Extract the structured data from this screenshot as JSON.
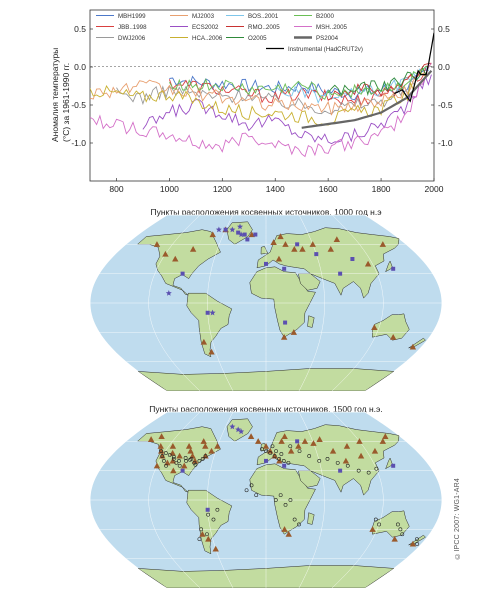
{
  "figure": {
    "copyright": "©IPCC 2007: WG1-AR4"
  },
  "chart_data": [
    {
      "type": "line",
      "title": "",
      "xlabel": "",
      "ylabel": "Аномалия температуры (°C) за 1961-1990 гг.",
      "xlim": [
        700,
        2000
      ],
      "ylim": [
        -1.5,
        0.75
      ],
      "x_ticks": [
        800,
        1000,
        1200,
        1400,
        1600,
        1800,
        2000
      ],
      "y_ticks_left": [
        "0.5",
        "0.0",
        "-0.5",
        "-1.0"
      ],
      "y_ticks_right": [
        "0.5",
        "0.0",
        "-0.5",
        "-1.0"
      ],
      "grid": false,
      "zero_line": "dashed",
      "legend_position": "top",
      "series": [
        {
          "name": "MBH1999",
          "color": "#4c78c9",
          "x": [
            1000,
            1100,
            1200,
            1300,
            1400,
            1500,
            1600,
            1700,
            1800,
            1850,
            1900,
            1950,
            1980
          ],
          "y": [
            -0.15,
            -0.2,
            -0.22,
            -0.25,
            -0.28,
            -0.25,
            -0.32,
            -0.35,
            -0.3,
            -0.3,
            -0.25,
            -0.15,
            -0.05
          ]
        },
        {
          "name": "JBB..1998",
          "color": "#d94040",
          "x": [
            1000,
            1100,
            1200,
            1300,
            1400,
            1500,
            1600,
            1700,
            1800,
            1850,
            1900,
            1950,
            1980
          ],
          "y": [
            -0.2,
            -0.25,
            -0.3,
            -0.35,
            -0.4,
            -0.35,
            -0.4,
            -0.45,
            -0.35,
            -0.3,
            -0.2,
            -0.1,
            0.0
          ]
        },
        {
          "name": "DWJ2006",
          "color": "#9a9a9a",
          "x": [
            800,
            900,
            1000,
            1100,
            1200,
            1300,
            1400,
            1500,
            1600,
            1700,
            1800,
            1900,
            1950
          ],
          "y": [
            -0.35,
            -0.4,
            -0.3,
            -0.35,
            -0.4,
            -0.35,
            -0.45,
            -0.5,
            -0.55,
            -0.5,
            -0.45,
            -0.3,
            -0.1
          ]
        },
        {
          "name": "MJ2003",
          "color": "#e8a070",
          "x": [
            700,
            800,
            900,
            1000,
            1100,
            1200,
            1300,
            1400,
            1500,
            1600,
            1700,
            1800,
            1900,
            1980
          ],
          "y": [
            -0.35,
            -0.3,
            -0.25,
            -0.3,
            -0.35,
            -0.4,
            -0.45,
            -0.5,
            -0.5,
            -0.55,
            -0.5,
            -0.45,
            -0.3,
            0.0
          ]
        },
        {
          "name": "ECS2002",
          "color": "#9a4fc4",
          "x": [
            900,
            1000,
            1100,
            1200,
            1300,
            1400,
            1500,
            1600,
            1700,
            1800,
            1900,
            1990
          ],
          "y": [
            -0.8,
            -0.6,
            -0.5,
            -0.6,
            -0.75,
            -0.7,
            -0.9,
            -0.95,
            -0.9,
            -0.75,
            -0.5,
            -0.1
          ]
        },
        {
          "name": "HCA..2006",
          "color": "#c8b030",
          "x": [
            700,
            800,
            900,
            1000,
            1100,
            1200,
            1300,
            1400,
            1500,
            1600,
            1700,
            1800,
            1900,
            1990
          ],
          "y": [
            -0.3,
            -0.35,
            -0.4,
            -0.35,
            -0.45,
            -0.55,
            -0.6,
            -0.6,
            -0.65,
            -0.7,
            -0.6,
            -0.55,
            -0.35,
            0.05
          ]
        },
        {
          "name": "BOS..2001",
          "color": "#7ec6ea",
          "x": [
            1400,
            1500,
            1600,
            1700,
            1800,
            1900,
            1980
          ],
          "y": [
            -0.3,
            -0.35,
            -0.4,
            -0.35,
            -0.3,
            -0.2,
            -0.05
          ]
        },
        {
          "name": "RMO..2005",
          "color": "#c83232",
          "x": [
            1600,
            1700,
            1800,
            1850,
            1900,
            1950,
            1990
          ],
          "y": [
            -0.35,
            -0.3,
            -0.3,
            -0.25,
            -0.2,
            -0.05,
            0.05
          ]
        },
        {
          "name": "O2005",
          "color": "#2f8a3a",
          "x": [
            1600,
            1700,
            1800,
            1900,
            1980
          ],
          "y": [
            -0.3,
            -0.3,
            -0.25,
            -0.15,
            0.0
          ]
        },
        {
          "name": "B2000",
          "color": "#6abf55",
          "x": [
            1000,
            1100,
            1200,
            1300,
            1400,
            1500,
            1600,
            1700,
            1800,
            1900,
            1980
          ],
          "y": [
            -0.2,
            -0.25,
            -0.25,
            -0.3,
            -0.3,
            -0.25,
            -0.35,
            -0.3,
            -0.3,
            -0.2,
            0.0
          ]
        },
        {
          "name": "MSH..2005",
          "color": "#d470c8",
          "x": [
            700,
            800,
            900,
            1000,
            1100,
            1200,
            1300,
            1400,
            1500,
            1600,
            1700,
            1800,
            1900,
            1990
          ],
          "y": [
            -0.7,
            -0.75,
            -0.85,
            -0.9,
            -1.0,
            -1.05,
            -0.9,
            -1.0,
            -1.1,
            -1.05,
            -1.0,
            -0.9,
            -0.6,
            0.05
          ]
        },
        {
          "name": "PS2004",
          "color": "#666666",
          "x": [
            1500,
            1600,
            1700,
            1800,
            1900,
            1990
          ],
          "y": [
            -0.8,
            -0.75,
            -0.7,
            -0.6,
            -0.4,
            -0.05
          ]
        },
        {
          "name": "Instrumental (HadCRUT2v)",
          "color": "#000000",
          "x": [
            1850,
            1880,
            1910,
            1940,
            1950,
            1970,
            1980,
            1990,
            2000
          ],
          "y": [
            -0.35,
            -0.3,
            -0.45,
            -0.05,
            -0.1,
            -0.1,
            0.05,
            0.25,
            0.45
          ]
        }
      ]
    },
    {
      "type": "map",
      "title": "Пункты расположения косвенных источников, 1000 год н.э",
      "projection": "robinson",
      "ocean_color": "#bfdcee",
      "land_color": "#c2dca0",
      "markers": [
        {
          "kind": "triangle",
          "color": "#9a5a2c",
          "lon": [
            -140,
            -120,
            -105,
            -90,
            -75,
            -60,
            -20,
            10,
            15,
            20,
            25,
            35,
            45,
            60,
            80,
            95,
            115,
            150,
            170,
            -70,
            -65,
            20,
            30,
            115,
            140
          ],
          "lat": [
            60,
            50,
            45,
            55,
            70,
            75,
            70,
            62,
            45,
            68,
            60,
            55,
            55,
            60,
            55,
            65,
            40,
            60,
            -45,
            -40,
            -50,
            -35,
            -30,
            -25,
            -35
          ]
        },
        {
          "kind": "square",
          "color": "#5b50b0",
          "lon": [
            -90,
            -60,
            -40,
            -30,
            -25,
            -15,
            0,
            20,
            40,
            60,
            80,
            100,
            140,
            -60,
            20
          ],
          "lat": [
            30,
            75,
            72,
            70,
            65,
            70,
            40,
            35,
            60,
            50,
            30,
            45,
            35,
            -10,
            -20
          ]
        },
        {
          "kind": "star",
          "color": "#5b50b0",
          "lon": [
            -70,
            -50,
            -40,
            -35,
            -100,
            -55
          ],
          "lat": [
            75,
            75,
            78,
            70,
            10,
            -10
          ]
        }
      ]
    },
    {
      "type": "map",
      "title": "Пункты расположения косвенных источников, 1500 год н.э.",
      "projection": "robinson",
      "ocean_color": "#bfdcee",
      "land_color": "#c2dca0",
      "markers": [
        {
          "kind": "triangle",
          "color": "#9a5a2c",
          "lon": [
            -150,
            -140,
            -130,
            -125,
            -120,
            -115,
            -110,
            -105,
            -100,
            -95,
            -90,
            -85,
            -80,
            -75,
            -70,
            -65,
            -60,
            -120,
            -110,
            -100,
            -90,
            -80,
            -20,
            -10,
            0,
            5,
            10,
            15,
            20,
            25,
            30,
            40,
            50,
            60,
            70,
            80,
            90,
            100,
            110,
            120,
            130,
            150,
            160,
            -70,
            -65,
            -60,
            20,
            25,
            115,
            145,
            170
          ],
          "lat": [
            62,
            65,
            55,
            50,
            45,
            55,
            48,
            40,
            45,
            55,
            50,
            45,
            60,
            55,
            45,
            50,
            55,
            35,
            38,
            30,
            35,
            40,
            65,
            60,
            55,
            50,
            45,
            40,
            60,
            65,
            50,
            55,
            60,
            58,
            62,
            50,
            40,
            55,
            45,
            60,
            50,
            60,
            65,
            -35,
            -40,
            -50,
            -30,
            -35,
            -30,
            -40,
            -45
          ]
        },
        {
          "kind": "circle",
          "color": "#222222",
          "lon": [
            -125,
            -120,
            -115,
            -110,
            -105,
            -100,
            -95,
            -90,
            -85,
            -80,
            -75,
            -70,
            -118,
            -112,
            -106,
            -98,
            -92,
            -86,
            -78,
            -72,
            0,
            5,
            10,
            15,
            20,
            25,
            -5,
            8,
            12,
            18,
            30,
            40,
            50,
            60,
            70,
            80,
            90,
            100,
            110,
            120,
            30,
            35,
            20,
            25,
            -60,
            -55,
            -50,
            -70,
            -65,
            -75,
            140,
            145,
            150,
            115,
            120,
            170,
            175,
            -20,
            -15,
            -10,
            10,
            15
          ],
          "lat": [
            50,
            45,
            40,
            35,
            42,
            38,
            35,
            40,
            42,
            38,
            40,
            45,
            48,
            46,
            44,
            40,
            43,
            41,
            36,
            42,
            50,
            48,
            45,
            42,
            40,
            38,
            52,
            55,
            50,
            47,
            55,
            50,
            45,
            40,
            42,
            38,
            35,
            30,
            28,
            32,
            -20,
            -25,
            -5,
            0,
            -15,
            -20,
            -10,
            -30,
            -35,
            -40,
            -25,
            -30,
            -35,
            -20,
            -25,
            -40,
            -45,
            10,
            15,
            5,
            0,
            5
          ]
        },
        {
          "kind": "square",
          "color": "#5b50b0",
          "lon": [
            -90,
            0,
            20,
            40,
            80,
            140,
            -60
          ],
          "lat": [
            30,
            40,
            35,
            60,
            30,
            35,
            -10
          ]
        },
        {
          "kind": "star",
          "color": "#5b50b0",
          "lon": [
            -40,
            -35,
            -50
          ],
          "lat": [
            72,
            70,
            75
          ]
        }
      ]
    }
  ]
}
